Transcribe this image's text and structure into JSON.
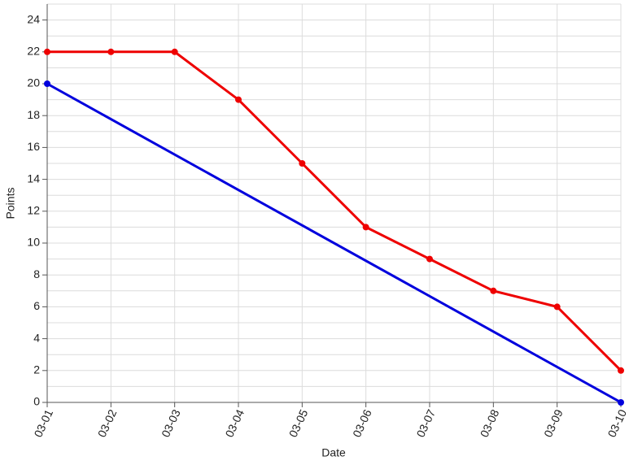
{
  "chart_data": {
    "type": "line",
    "x_label": "Date",
    "y_label": "Points",
    "categories": [
      "03-01",
      "03-02",
      "03-03",
      "03-04",
      "03-05",
      "03-06",
      "03-07",
      "03-08",
      "03-09",
      "03-10"
    ],
    "series": [
      {
        "color": "#ee0000",
        "x": [
          "03-01",
          "03-02",
          "03-03",
          "03-04",
          "03-05",
          "03-06",
          "03-07",
          "03-08",
          "03-09",
          "03-10"
        ],
        "values": [
          22,
          22,
          22,
          19,
          15,
          11,
          9,
          7,
          6,
          2
        ]
      },
      {
        "color": "#0000dd",
        "x": [
          "03-01",
          "03-10"
        ],
        "values": [
          20,
          0
        ]
      }
    ],
    "ylim": [
      0,
      25
    ],
    "yticks": [
      0,
      2,
      4,
      6,
      8,
      10,
      12,
      14,
      16,
      18,
      20,
      22,
      24
    ],
    "minor_yticks": [
      1,
      3,
      5,
      7,
      9,
      11,
      13,
      15,
      17,
      19,
      21,
      23,
      25
    ],
    "grid": true
  }
}
